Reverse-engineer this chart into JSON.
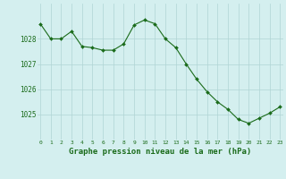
{
  "hours": [
    0,
    1,
    2,
    3,
    4,
    5,
    6,
    7,
    8,
    9,
    10,
    11,
    12,
    13,
    14,
    15,
    16,
    17,
    18,
    19,
    20,
    21,
    22,
    23
  ],
  "pressure": [
    1028.6,
    1028.0,
    1028.0,
    1028.3,
    1027.7,
    1027.65,
    1027.55,
    1027.55,
    1027.8,
    1028.55,
    1028.75,
    1028.6,
    1028.0,
    1027.65,
    1027.0,
    1026.4,
    1025.9,
    1025.5,
    1025.2,
    1024.8,
    1024.65,
    1024.85,
    1025.05,
    1025.3
  ],
  "line_color": "#1a6b1a",
  "marker_color": "#1a6b1a",
  "bg_color": "#d4efef",
  "grid_color": "#b0d4d4",
  "xlabel": "Graphe pression niveau de la mer (hPa)",
  "xlabel_color": "#1a6b1a",
  "tick_color": "#1a6b1a",
  "ylim": [
    1024.0,
    1029.4
  ],
  "yticks": [
    1025,
    1026,
    1027,
    1028
  ],
  "xticks": [
    0,
    1,
    2,
    3,
    4,
    5,
    6,
    7,
    8,
    9,
    10,
    11,
    12,
    13,
    14,
    15,
    16,
    17,
    18,
    19,
    20,
    21,
    22,
    23
  ]
}
